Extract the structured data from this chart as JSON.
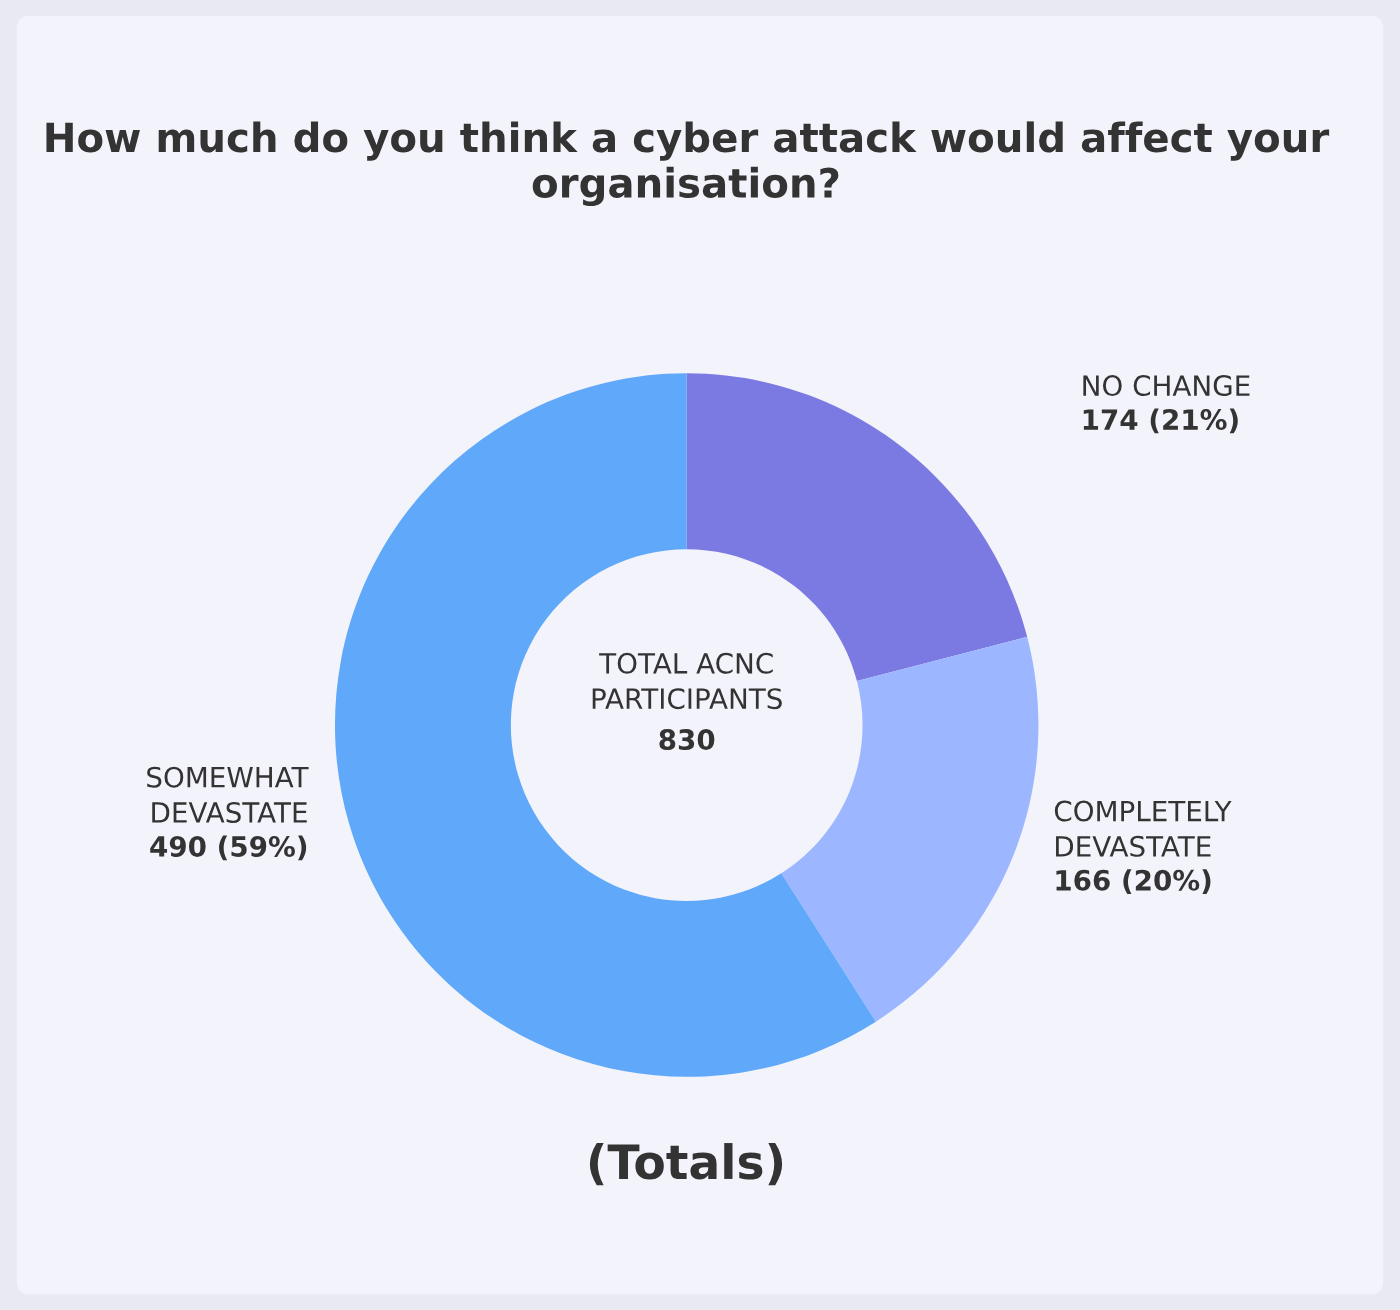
{
  "chart_data": {
    "type": "donut",
    "title": "How much do you think a cyber attack would affect your organisation?",
    "categories": [
      "NO CHANGE",
      "COMPLETELY DEVASTATE",
      "SOMEWHAT DEVASTATE"
    ],
    "values": [
      174,
      166,
      490
    ],
    "colors": [
      "#7b7ae2",
      "#9cb6ff",
      "#60a8f9"
    ],
    "value_labels": [
      "174 (21%)",
      "166 (20%)",
      "490 (59%)"
    ],
    "annotations": [
      "TOTAL ACNC PARTICIPANTS",
      "830",
      "(Totals)"
    ],
    "legend": false
  }
}
